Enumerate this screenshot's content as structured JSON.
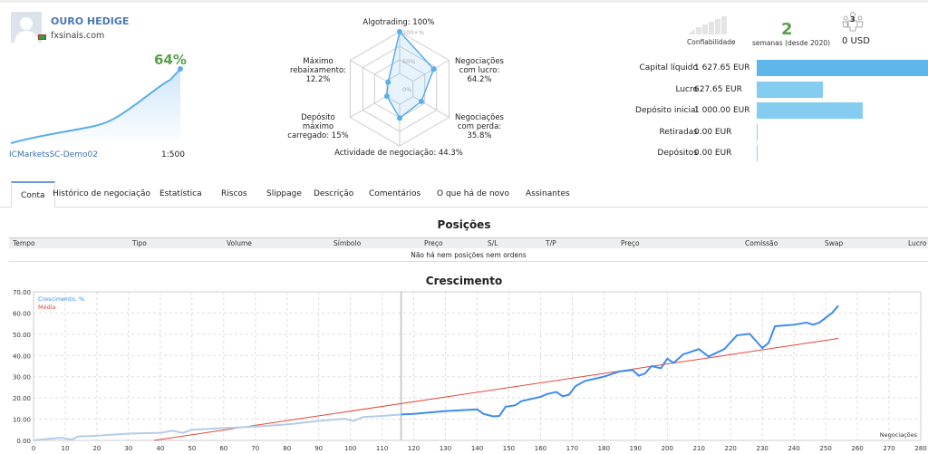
{
  "profile": {
    "name": "OURO HEDIGE",
    "site": "fxsinais.com",
    "growth": "64%",
    "server": "ICMarketsSC-Demo02",
    "leverage": "1:500"
  },
  "radar": {
    "center_labels": [
      "100+%",
      "50%",
      "0%"
    ],
    "axes": [
      {
        "label": "Algotrading: 100%",
        "value": 100
      },
      {
        "label": "Negociações com lucro: 64.2%",
        "value": 64.2
      },
      {
        "label": "Negociações com perda: 35.8%",
        "value": 35.8
      },
      {
        "label": "Actividade de negociação: 44.3%",
        "value": 44.3
      },
      {
        "label": "Depósito máximo carregado: 15%",
        "value": 15
      },
      {
        "label": "Máximo rebaixamento: 12.2%",
        "value": 12.2
      }
    ]
  },
  "stats": {
    "reliability_label": "Confiabilidade",
    "weeks": "2",
    "weeks_label": "semanas (desde 2020)",
    "subscribers_count": "3",
    "subscribers_price": "0 USD"
  },
  "balances": [
    {
      "label": "Capital líquido",
      "value": "1 627.65 EUR",
      "amount": 1627.65,
      "color": "#5eb6ea"
    },
    {
      "label": "Lucro",
      "value": "627.65 EUR",
      "amount": 627.65,
      "color": "#84cdf1"
    },
    {
      "label": "Depósito inicial",
      "value": "1 000.00 EUR",
      "amount": 1000,
      "color": "#84cdf1"
    },
    {
      "label": "Retiradas",
      "value": "0.00 EUR",
      "amount": 0,
      "color": "#84cdf1"
    },
    {
      "label": "Depósitos",
      "value": "0.00 EUR",
      "amount": 0,
      "color": "#84cdf1"
    }
  ],
  "tabs": [
    "Conta",
    "Histórico de negociação",
    "Estatística",
    "Riscos",
    "Slippage",
    "Descrição",
    "Comentários",
    "O que há de novo",
    "Assinantes"
  ],
  "positions": {
    "title": "Posições",
    "columns": [
      "Tempo",
      "Tipo",
      "Volume",
      "Símbolo",
      "Preço",
      "S/L",
      "T/P",
      "Preço",
      "Comissão",
      "Swap",
      "Lucro"
    ],
    "empty": "Não há nem posições nem ordens"
  },
  "chart_data": {
    "type": "line",
    "title": "Crescimento",
    "xlabel": "Negociações",
    "ylabel": "",
    "xlim": [
      0,
      280
    ],
    "ylim": [
      0,
      70
    ],
    "xticks": [
      0,
      10,
      20,
      30,
      40,
      50,
      60,
      70,
      80,
      90,
      100,
      110,
      120,
      130,
      140,
      150,
      160,
      170,
      180,
      190,
      200,
      210,
      220,
      230,
      240,
      250,
      260,
      270,
      280
    ],
    "yticks": [
      "0.00",
      "10.00",
      "20.00",
      "30.00",
      "40.00",
      "50.00",
      "60.00",
      "70.00"
    ],
    "legend": [
      "Crescimento, %",
      "Média"
    ],
    "legend_placement": "top-left",
    "divider_x": 116,
    "series": [
      {
        "name": "Crescimento, %",
        "color": "#3d8bf0",
        "x": [
          0,
          5,
          9,
          12,
          14,
          20,
          30,
          40,
          44,
          47,
          50,
          60,
          70,
          80,
          90,
          98,
          101,
          104,
          110,
          116,
          120,
          130,
          140,
          142,
          145,
          147,
          149,
          152,
          154,
          160,
          162,
          165,
          167,
          169,
          171,
          174,
          180,
          185,
          189,
          191,
          193,
          195,
          198,
          200,
          202,
          205,
          210,
          213,
          218,
          222,
          226,
          230,
          232,
          234,
          240,
          244,
          246,
          248,
          252,
          254
        ],
        "y": [
          0,
          0.8,
          1.2,
          0.4,
          1.8,
          2.2,
          3.2,
          3.6,
          4.6,
          3.5,
          5,
          5.8,
          6.5,
          7.5,
          9.2,
          10.2,
          9.2,
          11,
          11.5,
          12.2,
          12.5,
          13.8,
          14.6,
          12.5,
          11.3,
          11.5,
          15.9,
          16.5,
          18.5,
          20.5,
          21.8,
          22.8,
          20.8,
          21.5,
          25.5,
          28,
          30,
          32.5,
          33.2,
          30.5,
          31.5,
          35,
          34,
          38.5,
          36.5,
          40.5,
          43,
          39.5,
          43,
          49.5,
          50.2,
          43.5,
          46,
          53.8,
          54.5,
          55.5,
          54.5,
          55.5,
          60,
          63.5
        ]
      },
      {
        "name": "Média",
        "color": "#e8453c",
        "x": [
          38,
          254
        ],
        "y": [
          0,
          48
        ]
      }
    ]
  }
}
